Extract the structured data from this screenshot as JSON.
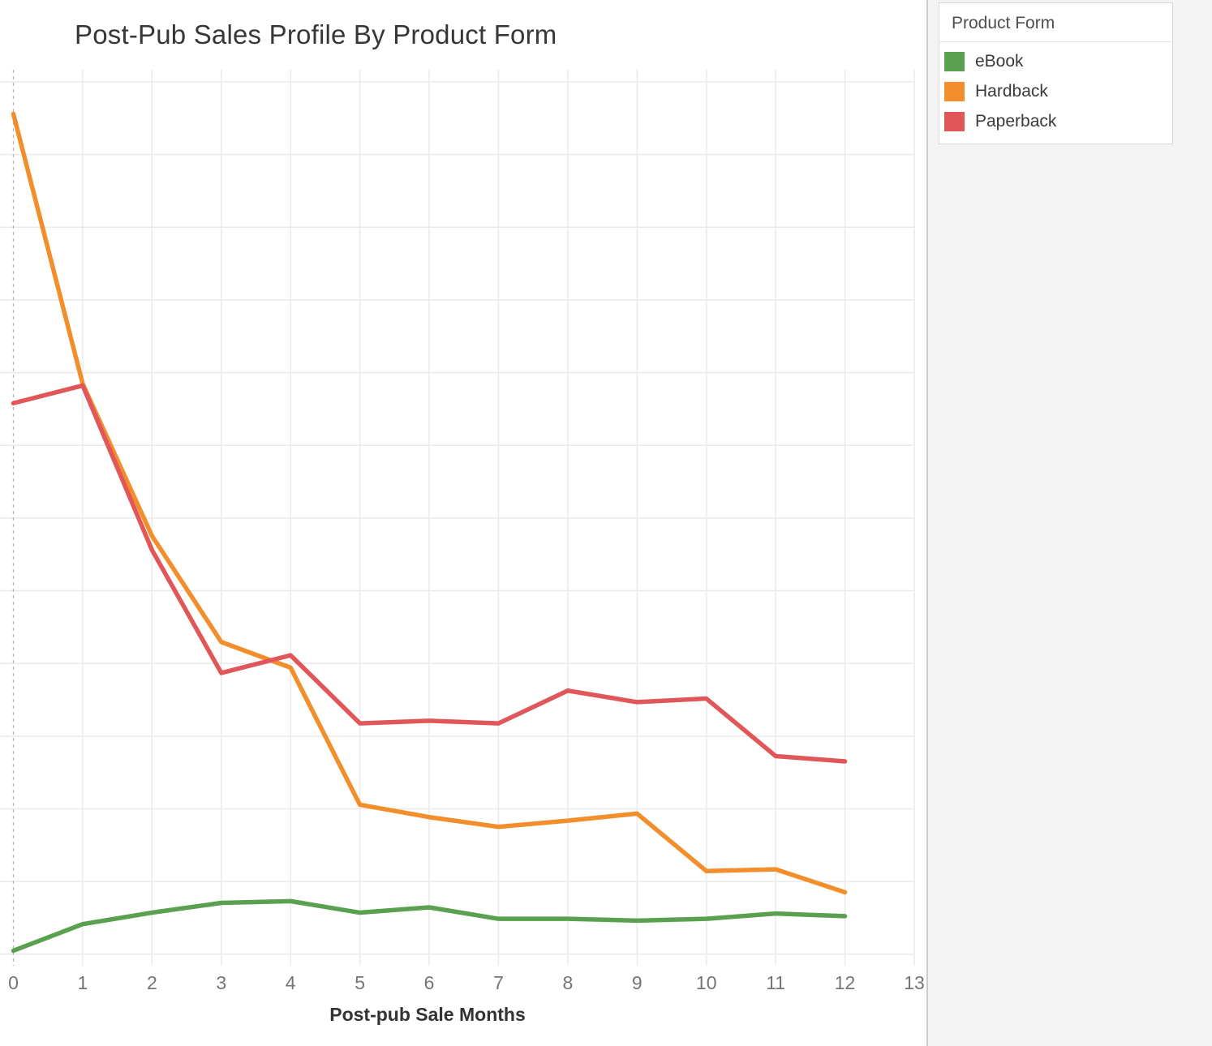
{
  "title": "Post-Pub Sales Profile By Product Form",
  "legend": {
    "title": "Product Form",
    "items": [
      {
        "label": "eBook",
        "color": "#59A14F"
      },
      {
        "label": "Hardback",
        "color": "#F28E2B"
      },
      {
        "label": "Paperback",
        "color": "#E15759"
      }
    ]
  },
  "colors": {
    "gridline": "#eaeaea",
    "zero_dashed_line": "#b8b8b8",
    "tick_label": "#757575",
    "axis_title": "#333333",
    "panel_background": "#f3f3f3"
  },
  "chart_data": {
    "type": "line",
    "title": "Post-Pub Sales Profile By Product Form",
    "xlabel": "Post-pub Sale Months",
    "ylabel": "",
    "x": [
      0,
      1,
      2,
      3,
      4,
      5,
      6,
      7,
      8,
      9,
      10,
      11,
      12
    ],
    "x_ticks": [
      "0",
      "1",
      "2",
      "3",
      "4",
      "5",
      "6",
      "7",
      "8",
      "9",
      "10",
      "11",
      "12",
      "13"
    ],
    "xlim": [
      0,
      13
    ],
    "grid": true,
    "legend_position": "top-right",
    "y_axis_labels_visible": false,
    "value_scale": "relative units, 0-100 = full plot height (y-axis is unlabeled in source)",
    "series": [
      {
        "name": "eBook",
        "color": "#59A14F",
        "values": [
          0.4,
          3.4,
          4.7,
          5.8,
          6.0,
          4.7,
          5.3,
          4.0,
          4.0,
          3.8,
          4.0,
          4.6,
          4.3
        ]
      },
      {
        "name": "Hardback",
        "color": "#F28E2B",
        "values": [
          95.0,
          64.5,
          47.3,
          35.3,
          32.4,
          16.9,
          15.5,
          14.4,
          15.1,
          15.9,
          9.4,
          9.6,
          7.0
        ]
      },
      {
        "name": "Paperback",
        "color": "#E15759",
        "values": [
          62.3,
          64.3,
          45.7,
          31.8,
          33.8,
          26.1,
          26.4,
          26.1,
          29.8,
          28.5,
          28.9,
          22.4,
          21.8
        ]
      }
    ]
  }
}
